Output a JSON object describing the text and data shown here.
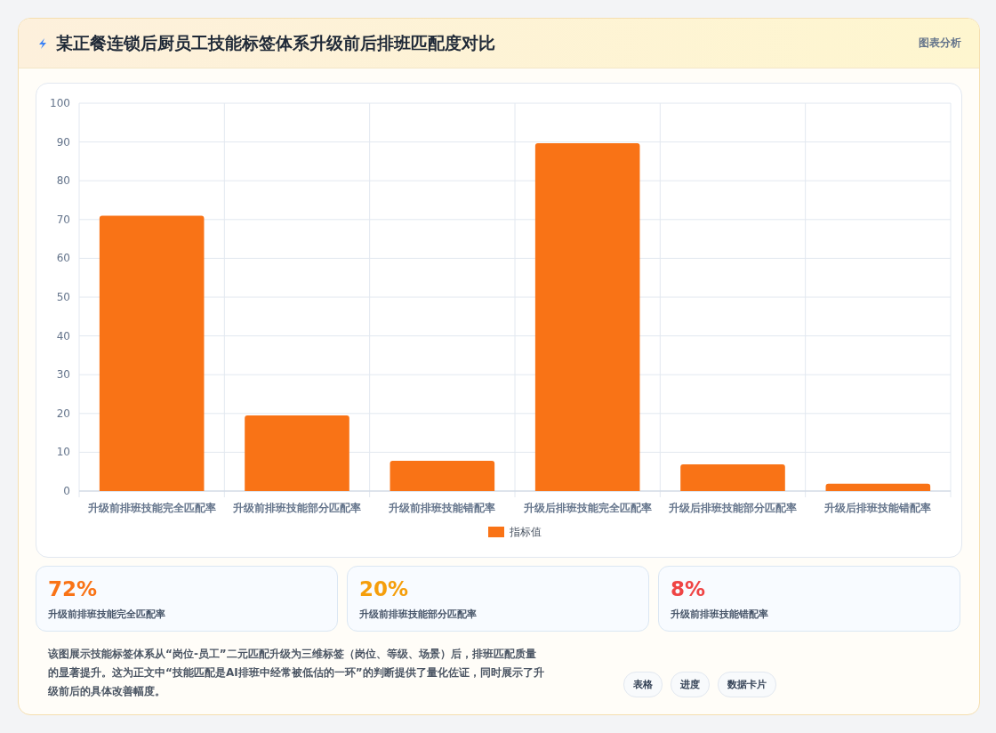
{
  "chart_data": {
    "type": "bar",
    "title": "某正餐连锁后厨员工技能标签体系升级前后排班匹配度对比",
    "categories": [
      "升级前排班技能完全匹配率",
      "升级前排班技能部分匹配率",
      "升级前排班技能错配率",
      "升级后排班技能完全匹配率",
      "升级后排班技能部分匹配率",
      "升级后排班技能错配率"
    ],
    "series": [
      {
        "name": "指标值",
        "color": "#f97316",
        "values": [
          71,
          19.5,
          7.8,
          89.7,
          6.9,
          1.9
        ]
      }
    ],
    "ylim": [
      0,
      100
    ],
    "yticks": [
      0,
      10,
      20,
      30,
      40,
      50,
      60,
      70,
      80,
      90,
      100
    ],
    "grid": true,
    "legend": "bottom",
    "annotations": [
      "图表分析",
      "72%",
      "升级前排班技能完全匹配率",
      "20%",
      "升级前排班技能部分匹配率",
      "8%",
      "升级前排班技能错配率",
      "该图展示技能标签体系从“岗位-员工”二元匹配升级为三维标签（岗位、等级、场景）后，排班匹配质量的显著提升。这为正文中“技能匹配是AI排班中经常被低估的一环”的判断提供了量化佐证，同时展示了升级前后的具体改善幅度。",
      "表格",
      "进度",
      "数据卡片"
    ]
  }
}
